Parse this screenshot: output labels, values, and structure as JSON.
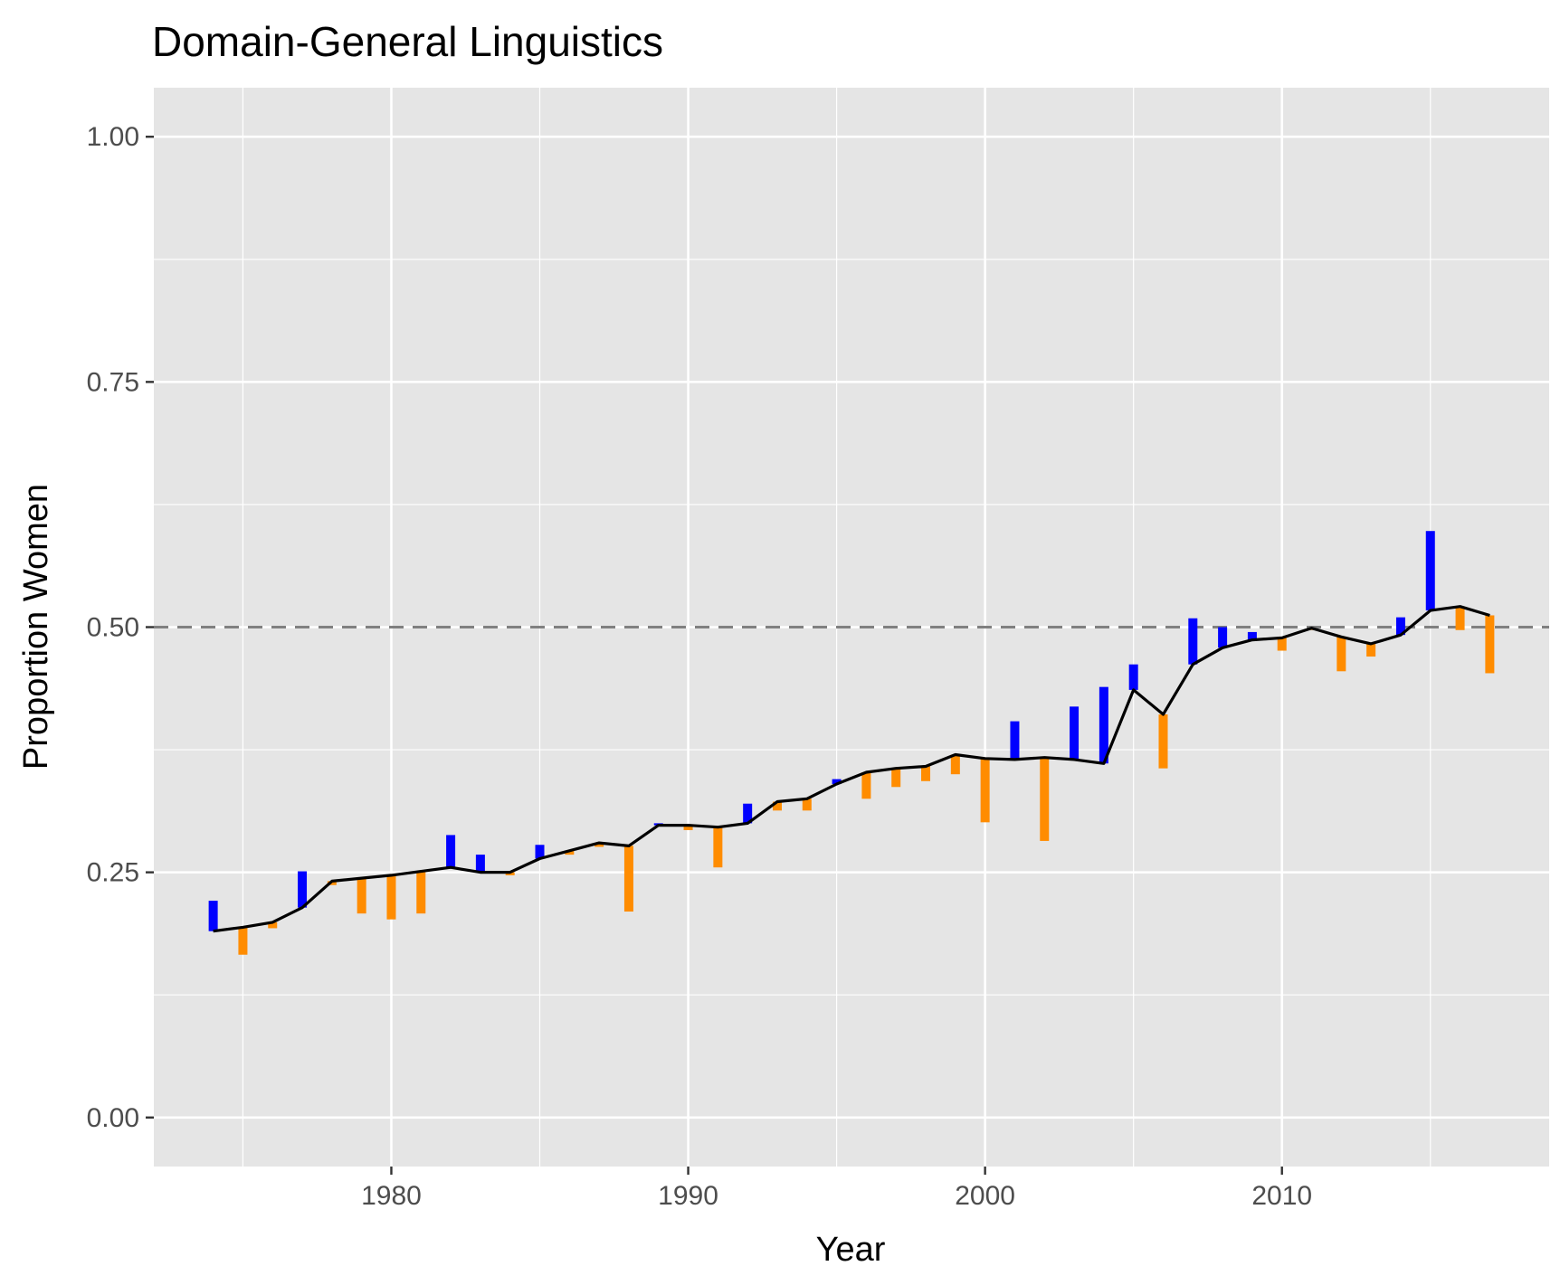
{
  "chart_data": {
    "type": "line",
    "title": "Domain-General Linguistics",
    "xlabel": "Year",
    "ylabel": "Proportion Women",
    "xlim": [
      1972,
      2019
    ],
    "ylim": [
      -0.05,
      1.05
    ],
    "x_ticks": [
      1980,
      1990,
      2000,
      2010
    ],
    "x_tick_labels": [
      "1980",
      "1990",
      "2000",
      "2010"
    ],
    "y_ticks": [
      0,
      0.25,
      0.5,
      0.75,
      1
    ],
    "y_tick_labels": [
      "0.00",
      "0.25",
      "0.50",
      "0.75",
      "1.00"
    ],
    "grid": true,
    "reference_line": {
      "y": 0.5,
      "style": "dashed",
      "color": "#808080"
    },
    "colors": {
      "panel": "#e5e5e5",
      "grid": "#ffffff",
      "trend": "#000000",
      "above": "#0000ff",
      "below": "#ff8c00"
    },
    "x": [
      1974,
      1975,
      1976,
      1977,
      1978,
      1979,
      1980,
      1981,
      1982,
      1983,
      1984,
      1985,
      1986,
      1987,
      1988,
      1989,
      1990,
      1991,
      1992,
      1993,
      1994,
      1995,
      1996,
      1997,
      1998,
      1999,
      2000,
      2001,
      2002,
      2003,
      2004,
      2005,
      2006,
      2007,
      2008,
      2009,
      2010,
      2011,
      2012,
      2013,
      2014,
      2015,
      2016,
      2017
    ],
    "trend": [
      0.19,
      0.194,
      0.199,
      0.214,
      0.241,
      0.244,
      0.247,
      0.251,
      0.255,
      0.25,
      0.25,
      0.264,
      0.272,
      0.28,
      0.277,
      0.298,
      0.298,
      0.296,
      0.3,
      0.322,
      0.325,
      0.34,
      0.352,
      0.356,
      0.358,
      0.37,
      0.366,
      0.365,
      0.367,
      0.365,
      0.361,
      0.436,
      0.411,
      0.462,
      0.479,
      0.487,
      0.489,
      0.499,
      0.49,
      0.483,
      0.492,
      0.517,
      0.521,
      0.512
    ],
    "observed": [
      0.221,
      0.166,
      0.193,
      0.251,
      0.237,
      0.208,
      0.202,
      0.208,
      0.288,
      0.268,
      0.247,
      0.278,
      0.268,
      0.276,
      0.21,
      0.3,
      0.293,
      0.255,
      0.32,
      0.313,
      0.313,
      0.345,
      0.325,
      0.337,
      0.343,
      0.35,
      0.301,
      0.404,
      0.282,
      0.419,
      0.439,
      0.462,
      0.356,
      0.509,
      0.5,
      0.495,
      0.476,
      0.497,
      0.455,
      0.47,
      0.51,
      0.598,
      0.497,
      0.453
    ]
  }
}
